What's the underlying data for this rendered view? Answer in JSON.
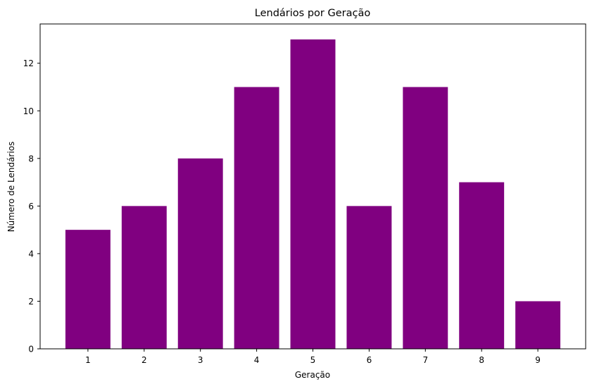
{
  "chart_data": {
    "type": "bar",
    "title": "Lendários por Geração",
    "xlabel": "Geração",
    "ylabel": "Número de Lendários",
    "categories": [
      "1",
      "2",
      "3",
      "4",
      "5",
      "6",
      "7",
      "8",
      "9"
    ],
    "values": [
      5,
      6,
      8,
      11,
      13,
      6,
      11,
      7,
      2
    ],
    "ylim": [
      0,
      13.65
    ],
    "yticks": [
      0,
      2,
      4,
      6,
      8,
      10,
      12
    ],
    "bar_color": "#800080",
    "grid": false,
    "legend": "none"
  }
}
